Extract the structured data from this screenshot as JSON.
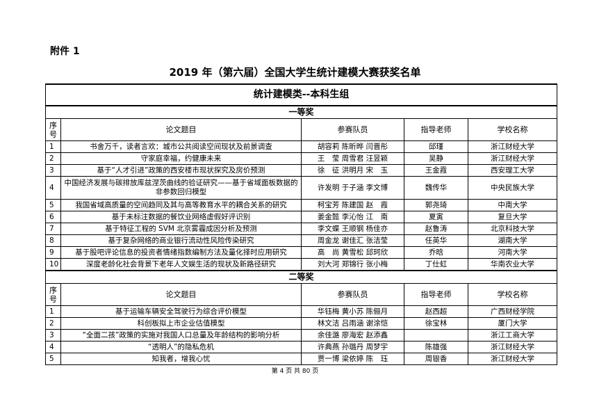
{
  "attachment_label": "附件 1",
  "title": "2019 年（第六届）全国大学生统计建模大赛获奖名单",
  "group": "统计建模类--本科生组",
  "headers": {
    "seq": "序号",
    "topic": "论文题目",
    "members": "参赛队员",
    "advisor": "指导老师",
    "school": "学校名称"
  },
  "sections": [
    {
      "prize": "一等奖",
      "rows": [
        {
          "seq": "1",
          "topic": "书舍万千，读者言欢：城市公共阅读空间现状及前景调查",
          "members": "胡容莉 陈昕晔 闫晋彤",
          "advisor": "邱瑾",
          "school": "浙江财经大学"
        },
        {
          "seq": "2",
          "topic": "守家庭幸福，约健康未来",
          "members": "王　莹 周雪君 汪昱颖",
          "advisor": "吴静",
          "school": "浙江财经大学"
        },
        {
          "seq": "3",
          "topic": "基于“人才引进”政策的西安楼市现状探究及房价预测",
          "members": "徐　征 洪明月 宋　玉",
          "advisor": "王金霞",
          "school": "西安理工大学"
        },
        {
          "seq": "4",
          "topic": "中国经济发展与碳排放库兹涅茨曲线的验证研究——基于省域面板数据的非参数回归模型",
          "members": "许发明 于子涵 李文博",
          "advisor": "魏传华",
          "school": "中央民族大学"
        },
        {
          "seq": "5",
          "topic": "我国省域高质量的空间趋同及其与高等教育水平的耦合关系的研究",
          "members": "柯宝芳 陈建国 赵　霞",
          "advisor": "郭尧琦",
          "school": "中南大学"
        },
        {
          "seq": "6",
          "topic": "基于未标注数据的餐饮业网络虚假好评识别",
          "members": "姜金懿 李沁怡 江　南",
          "advisor": "夏寅",
          "school": "复旦大学"
        },
        {
          "seq": "7",
          "topic": "基于特征工程的 SVM 北京雾霾成因分析及预测",
          "members": "李文蝶 王顺钢 杨佳亦",
          "advisor": "赵鲁涛",
          "school": "北京科技大学"
        },
        {
          "seq": "8",
          "topic": "基于复杂网络的商业银行流动性风险传染研究",
          "members": "周金龙 谢佳汇 张洁莹",
          "advisor": "任英华",
          "school": "湖南大学"
        },
        {
          "seq": "9",
          "topic": "基于股吧评论信息的投资者情绪指数编制方法及量化择时应用研究",
          "members": "高　尚 黄雪松 邱珂欣",
          "advisor": "乔晗",
          "school": "河南大学"
        },
        {
          "seq": "10",
          "topic": "深度老龄化社会背景下老年人文娱生活的现状及新路径研究",
          "members": "刘大河 郑锦行 张小梅",
          "advisor": "丁仕虹",
          "school": "华南农业大学"
        }
      ]
    },
    {
      "prize": "二等奖",
      "rows": [
        {
          "seq": "1",
          "topic": "基于运输车辆安全驾驶行为综合评价模型",
          "members": "华钰梅 黄小苏 陈俪月",
          "advisor": "赵西超",
          "school": "广西财经学院"
        },
        {
          "seq": "2",
          "topic": "科创板拟上市企业估值模型",
          "members": "林文洁 吕雨涵 谢涂恺",
          "advisor": "徐宝林",
          "school": "厦门大学"
        },
        {
          "seq": "3",
          "topic": "“全面二孩”政策的实施对我国人口总量及年龄结构的影响分析",
          "members": "余佳潞 廖海宏 赵添鑫",
          "advisor": "",
          "school": "浙江工商大学"
        },
        {
          "seq": "4",
          "topic": "“透明人”的隐私危机",
          "members": "许典燕 孙璐丹 周梦宇",
          "advisor": "陈雄强",
          "school": "浙江财经大学"
        },
        {
          "seq": "5",
          "topic": "知我者，增我心忧",
          "members": "贾一博 梁依婷 陈　珏",
          "advisor": "周银香",
          "school": "浙江财经大学"
        }
      ]
    }
  ],
  "footer": "第 4 页 共 80 页"
}
